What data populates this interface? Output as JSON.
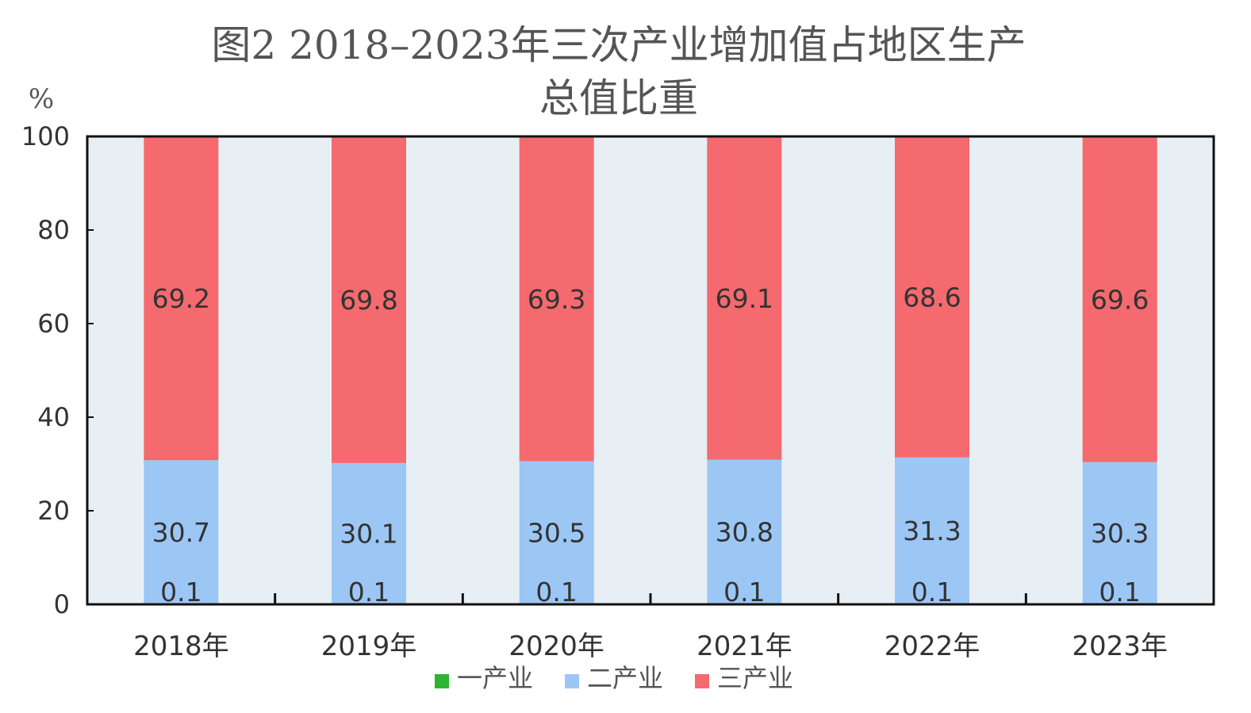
{
  "chart_data": {
    "type": "bar",
    "stacked": true,
    "title": "图2 2018–2023年三次产业增加值占地区生产总值比重",
    "title_lines": [
      "图2 2018–2023年三次产业增加值占地区生产",
      "总值比重"
    ],
    "unit_label": "%",
    "categories": [
      "2018年",
      "2019年",
      "2020年",
      "2021年",
      "2022年",
      "2023年"
    ],
    "ylim": [
      0,
      100
    ],
    "yticks": [
      0,
      20,
      40,
      60,
      80,
      100
    ],
    "grid": false,
    "legend_position": "bottom",
    "series": [
      {
        "name": "一产业",
        "color": "#2db52d",
        "values": [
          0.1,
          0.1,
          0.1,
          0.1,
          0.1,
          0.1
        ],
        "labels": [
          "0.1",
          "0.1",
          "0.1",
          "0.1",
          "0.1",
          "0.1"
        ]
      },
      {
        "name": "二产业",
        "color": "#9cc7f5",
        "values": [
          30.7,
          30.1,
          30.5,
          30.8,
          31.3,
          30.3
        ],
        "labels": [
          "30.7",
          "30.1",
          "30.5",
          "30.8",
          "31.3",
          "30.3"
        ]
      },
      {
        "name": "三产业",
        "color": "#f46a6e",
        "values": [
          69.2,
          69.8,
          69.3,
          69.1,
          68.6,
          69.6
        ],
        "labels": [
          "69.2",
          "69.8",
          "69.3",
          "69.1",
          "68.6",
          "69.6"
        ]
      }
    ],
    "plot_background": "#e8eff4"
  }
}
